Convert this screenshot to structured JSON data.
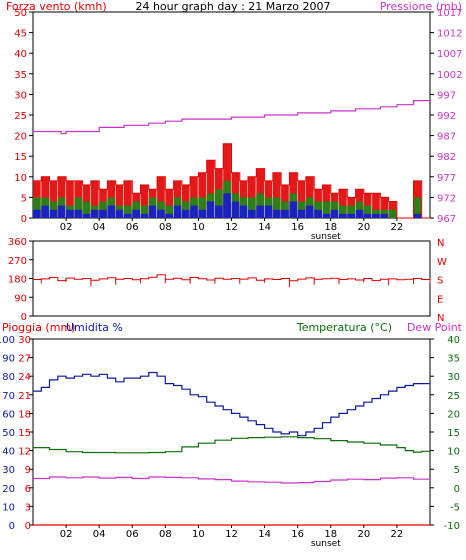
{
  "page": {
    "title": "24 hour graph day : 21 Marzo 2007"
  },
  "colors": {
    "wind": "#e00000",
    "gust": "#e00000",
    "wind_mid": "#1a8a1a",
    "wind_low": "#1a1ad0",
    "pressure": "#cc33cc",
    "direction": "#e00000",
    "rain": "#e00000",
    "humidity": "#0a1aa0",
    "temperature": "#0a6e0a",
    "dew_point": "#cc33cc",
    "axis_left": "#e00000",
    "axis_humidity": "#0a1aa0",
    "axis_right_bottom": "#0a6e0a",
    "axis_pressure": "#cc33cc"
  },
  "x_axis": {
    "tick_labels": [
      "02",
      "04",
      "06",
      "08",
      "10",
      "12",
      "14",
      "16",
      "18",
      "20",
      "22"
    ],
    "hours": [
      2,
      4,
      6,
      8,
      10,
      12,
      14,
      16,
      18,
      20,
      22
    ],
    "xlim": [
      0,
      24
    ],
    "sunset_label": "sunset",
    "sunset_hour": 17.7
  },
  "chart_data": [
    {
      "type": "bar",
      "title": "24 hour graph day : 21 Marzo 2007",
      "ylabel": "Forza vento (kmh)",
      "y2label": "Pressione (mb)",
      "ylim": [
        0,
        50
      ],
      "y2lim": [
        967,
        1017
      ],
      "yticks": [
        "0",
        "5",
        "10",
        "15",
        "20",
        "25",
        "30",
        "35",
        "40",
        "45",
        "50"
      ],
      "y2ticks": [
        "967",
        "972",
        "977",
        "982",
        "987",
        "992",
        "997",
        "1002",
        "1007",
        "1012",
        "1017"
      ],
      "grid": false,
      "series": [
        {
          "name": "Forza vento (kmh)",
          "kind": "gust-steps",
          "x": [
            0,
            0.5,
            1,
            1.5,
            2,
            2.5,
            3,
            3.5,
            4,
            4.5,
            5,
            5.5,
            6,
            6.5,
            7,
            7.5,
            8,
            8.5,
            9,
            9.5,
            10,
            10.5,
            11,
            11.5,
            12,
            12.5,
            13,
            13.5,
            14,
            14.5,
            15,
            15.5,
            16,
            16.5,
            17,
            17.5,
            18,
            18.5,
            19,
            19.5,
            20,
            20.5,
            21,
            21.5,
            22,
            22.5,
            23,
            23.5,
            24
          ],
          "values": [
            9,
            10,
            9,
            10,
            9,
            9,
            8,
            9,
            7,
            9,
            8,
            9,
            6,
            8,
            7,
            10,
            7,
            9,
            8,
            10,
            11,
            14,
            12,
            18,
            11,
            9,
            10,
            12,
            9,
            11,
            8,
            11,
            9,
            10,
            7,
            8,
            6,
            7,
            5,
            7,
            6,
            6,
            5,
            4,
            0,
            0,
            9,
            0,
            0
          ]
        },
        {
          "name": "",
          "kind": "mid-steps",
          "x": [
            0,
            0.5,
            1,
            1.5,
            2,
            2.5,
            3,
            3.5,
            4,
            4.5,
            5,
            5.5,
            6,
            6.5,
            7,
            7.5,
            8,
            8.5,
            9,
            9.5,
            10,
            10.5,
            11,
            11.5,
            12,
            12.5,
            13,
            13.5,
            14,
            14.5,
            15,
            15.5,
            16,
            16.5,
            17,
            17.5,
            18,
            18.5,
            19,
            19.5,
            20,
            20.5,
            21,
            21.5,
            22,
            22.5,
            23,
            23.5,
            24
          ],
          "values": [
            5,
            5,
            4,
            5,
            3,
            5,
            4,
            3,
            4,
            5,
            3,
            3,
            4,
            3,
            5,
            4,
            3,
            5,
            4,
            5,
            5,
            6,
            7,
            9,
            6,
            5,
            5,
            6,
            5,
            5,
            4,
            6,
            4,
            5,
            4,
            4,
            4,
            3,
            3,
            4,
            3,
            2,
            2,
            2,
            0,
            0,
            5,
            0,
            0
          ]
        },
        {
          "name": "",
          "kind": "low-steps",
          "x": [
            0,
            0.5,
            1,
            1.5,
            2,
            2.5,
            3,
            3.5,
            4,
            4.5,
            5,
            5.5,
            6,
            6.5,
            7,
            7.5,
            8,
            8.5,
            9,
            9.5,
            10,
            10.5,
            11,
            11.5,
            12,
            12.5,
            13,
            13.5,
            14,
            14.5,
            15,
            15.5,
            16,
            16.5,
            17,
            17.5,
            18,
            18.5,
            19,
            19.5,
            20,
            20.5,
            21,
            21.5,
            22,
            22.5,
            23,
            23.5,
            24
          ],
          "values": [
            2,
            3,
            2,
            3,
            2,
            2,
            1,
            2,
            2,
            3,
            2,
            1,
            2,
            1,
            3,
            2,
            1,
            3,
            2,
            3,
            2,
            4,
            3,
            6,
            4,
            3,
            2,
            3,
            3,
            2,
            2,
            4,
            2,
            3,
            2,
            1,
            2,
            1,
            1,
            2,
            1,
            1,
            1,
            0,
            0,
            0,
            1,
            0,
            0
          ]
        },
        {
          "name": "Pressione (mb)",
          "kind": "pressure-steps",
          "axis": "right",
          "x": [
            0,
            1.5,
            1.7,
            2,
            4,
            5.5,
            7,
            8,
            9,
            10,
            12,
            14,
            16,
            18,
            19.5,
            20,
            21,
            22,
            22.5,
            23,
            24
          ],
          "values": [
            988,
            988,
            987.5,
            988,
            989,
            989.5,
            990,
            990.5,
            991,
            991,
            991.5,
            992,
            992.5,
            993,
            993.5,
            993.5,
            994,
            994.5,
            994.5,
            995.5,
            995.5
          ]
        }
      ]
    },
    {
      "type": "line",
      "ylim": [
        0,
        360
      ],
      "yticks": [
        "0",
        "90",
        "180",
        "270",
        "360"
      ],
      "y2ticks": [
        "N",
        "W",
        "S",
        "E",
        "N"
      ],
      "grid": false,
      "series": [
        {
          "name": "",
          "kind": "direction",
          "x": [
            0,
            0.5,
            1,
            1.5,
            2,
            2.5,
            3,
            3.5,
            4,
            4.5,
            5,
            5.5,
            6,
            6.5,
            7,
            7.5,
            8,
            8.5,
            9,
            9.5,
            10,
            10.5,
            11,
            11.5,
            12,
            12.5,
            13,
            13.5,
            14,
            14.5,
            15,
            15.5,
            16,
            16.5,
            17,
            17.5,
            18,
            18.5,
            19,
            19.5,
            20,
            20.5,
            21,
            21.5,
            22,
            22.5,
            23,
            23.5,
            24
          ],
          "values": [
            175,
            178,
            185,
            170,
            182,
            176,
            180,
            172,
            178,
            184,
            176,
            180,
            174,
            179,
            186,
            198,
            176,
            181,
            174,
            185,
            179,
            173,
            181,
            176,
            180,
            177,
            183,
            172,
            178,
            175,
            180,
            169,
            177,
            183,
            176,
            179,
            181,
            175,
            178,
            173,
            180,
            170,
            176,
            178,
            174,
            176,
            180,
            175,
            160
          ]
        }
      ]
    },
    {
      "type": "line",
      "ylabel": "Pioggia (mm)",
      "y2label": "Umidita %",
      "y3label": "Temperatura (°C)",
      "y4label": "Dew Point",
      "ylim": [
        0,
        30
      ],
      "humidity_lim": [
        0,
        100
      ],
      "temp_lim": [
        -10,
        40
      ],
      "yticks": [
        "0",
        "3",
        "6",
        "9",
        "12",
        "15",
        "18",
        "21",
        "24",
        "27",
        "30"
      ],
      "humidity_ticks": [
        "0",
        "10",
        "20",
        "30",
        "40",
        "50",
        "60",
        "70",
        "80",
        "90",
        "100"
      ],
      "temp_ticks": [
        "-10",
        "-5",
        "0",
        "5",
        "10",
        "15",
        "20",
        "25",
        "30",
        "35",
        "40"
      ],
      "grid": false,
      "series": [
        {
          "name": "Pioggia (mm)",
          "axis": "rain",
          "x": [
            0,
            24
          ],
          "values": [
            0,
            0
          ]
        },
        {
          "name": "Umidita %",
          "axis": "humidity",
          "x": [
            0,
            0.5,
            1,
            1.5,
            2,
            2.5,
            3,
            3.5,
            4,
            4.5,
            5,
            5.5,
            6,
            6.5,
            7,
            7.5,
            8,
            8.5,
            9,
            9.5,
            10,
            10.5,
            11,
            11.5,
            12,
            12.5,
            13,
            13.5,
            14,
            14.5,
            15,
            15.5,
            16,
            16.5,
            17,
            17.5,
            18,
            18.5,
            19,
            19.5,
            20,
            20.5,
            21,
            21.5,
            22,
            22.5,
            23,
            23.5,
            24
          ],
          "values": [
            72,
            74,
            78,
            80,
            79,
            80,
            81,
            80,
            81,
            79,
            77,
            79,
            79,
            80,
            82,
            80,
            76,
            75,
            73,
            70,
            69,
            66,
            64,
            62,
            60,
            58,
            56,
            54,
            52,
            50,
            49,
            50,
            48,
            50,
            52,
            55,
            58,
            60,
            62,
            64,
            66,
            68,
            70,
            72,
            74,
            75,
            76,
            76,
            76
          ]
        },
        {
          "name": "Temperatura (°C)",
          "axis": "temp",
          "x": [
            0,
            1,
            2,
            3,
            4,
            5,
            6,
            7,
            8,
            9,
            10,
            11,
            12,
            13,
            14,
            15,
            16,
            17,
            18,
            19,
            20,
            21,
            22,
            22.5,
            23,
            23.5,
            24
          ],
          "values": [
            10.8,
            10.3,
            9.7,
            9.5,
            9.5,
            9.4,
            9.4,
            9.5,
            9.7,
            11,
            12,
            12.8,
            13.3,
            13.5,
            13.6,
            13.7,
            13.5,
            13.2,
            12.7,
            12.3,
            12,
            11.5,
            10.8,
            10,
            9.6,
            9.8,
            10
          ]
        },
        {
          "name": "Dew Point",
          "axis": "temp",
          "x": [
            0,
            1,
            2,
            3,
            4,
            5,
            6,
            7,
            8,
            9,
            10,
            11,
            12,
            13,
            14,
            15,
            16,
            17,
            18,
            19,
            20,
            21,
            22,
            23,
            24
          ],
          "values": [
            2.5,
            2.9,
            2.7,
            2.9,
            2.6,
            2.8,
            2.5,
            2.9,
            2.8,
            2.7,
            2.4,
            2.2,
            1.8,
            1.6,
            1.5,
            1.3,
            1.4,
            1.7,
            2.1,
            2.3,
            2.2,
            2.6,
            2.7,
            2.3,
            2.4
          ]
        }
      ]
    }
  ]
}
